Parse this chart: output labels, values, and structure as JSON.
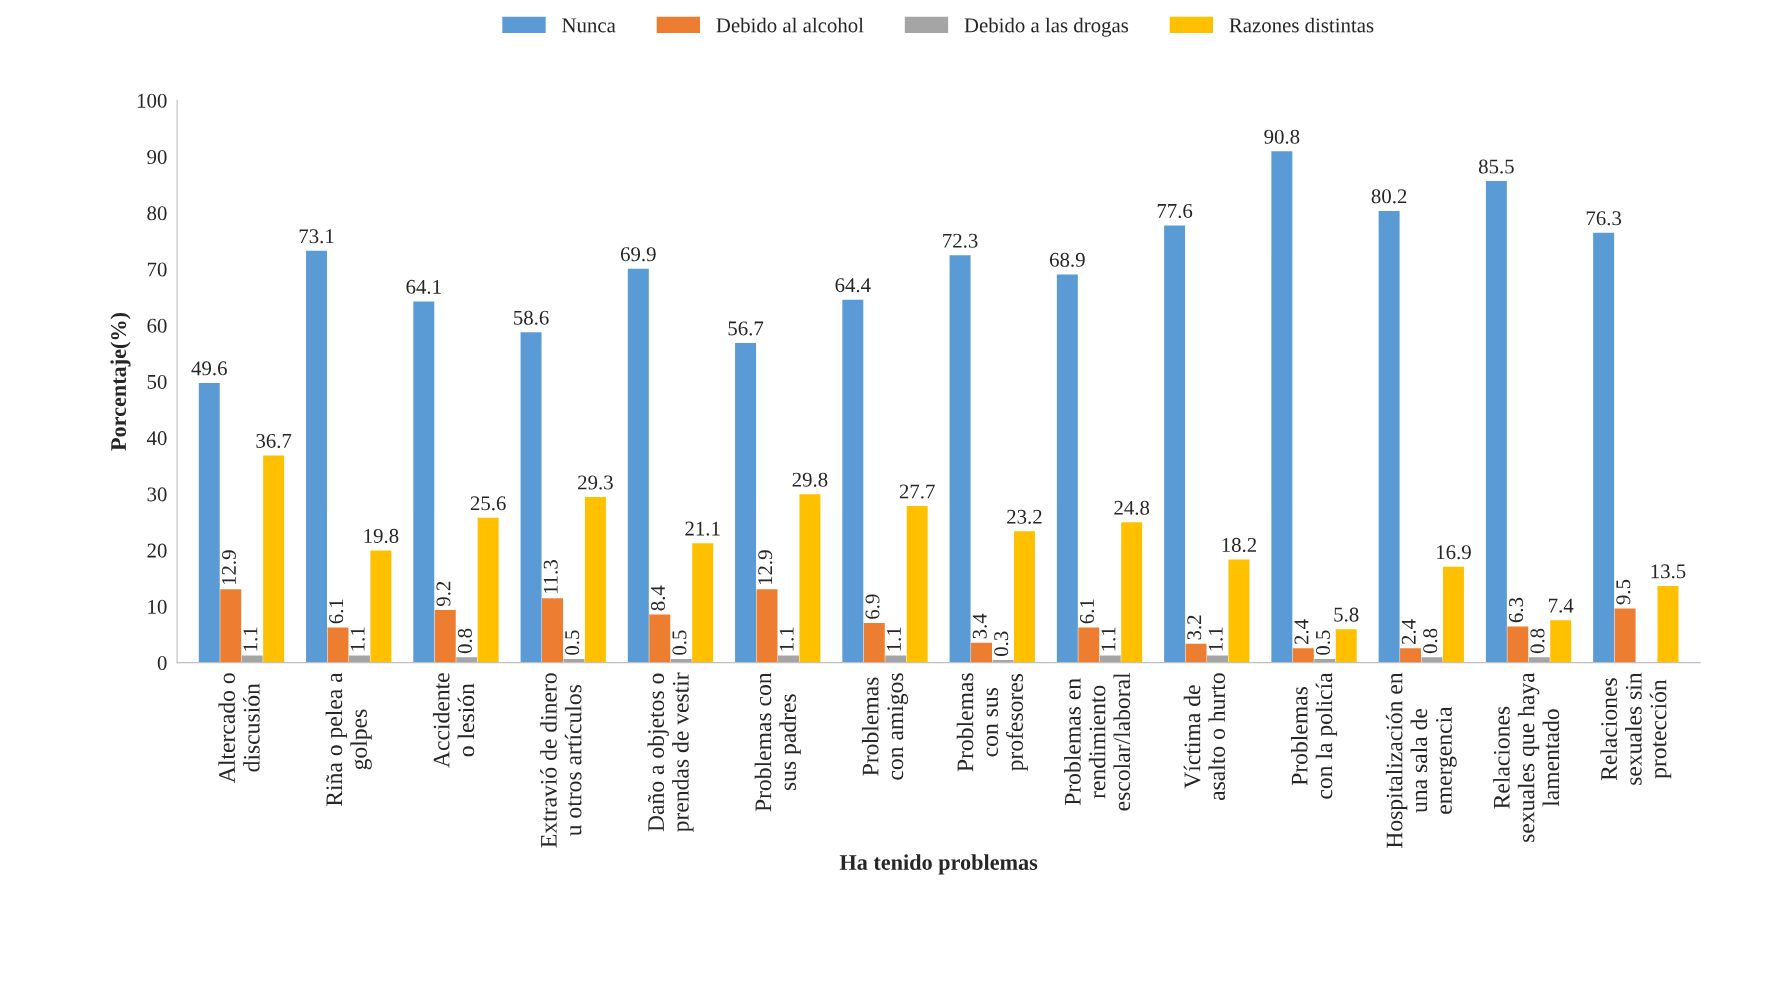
{
  "chart_data": {
    "type": "bar",
    "xlabel": "Ha tenido problemas",
    "ylabel": "Porcentaje(%)",
    "categories": [
      "Altercado o\ndiscusión",
      "Riña o pelea a\ngolpes",
      "Accidente\no lesión",
      "Extravió de dinero\nu otros artículos",
      "Daño a objetos o\nprendas de vestir",
      "Problemas con\nsus padres",
      "Problemas\ncon amigos",
      "Problemas\ncon sus\nprofesores",
      "Problemas en\nrendimiento\nescolar/laboral",
      "Víctima de\nasalto o hurto",
      "Problemas\ncon la policía",
      "Hospitalización en\nuna sala de\nemergencia",
      "Relaciones\nsexuales que haya\nlamentado",
      "Relaciones\nsexuales sin\nprotección"
    ],
    "series": [
      {
        "name": "Nunca",
        "color": "#5b9bd5",
        "values": [
          49.6,
          73.1,
          64.1,
          58.6,
          69.9,
          56.7,
          64.4,
          72.3,
          68.9,
          77.6,
          90.8,
          80.2,
          85.5,
          76.3
        ]
      },
      {
        "name": "Debido al alcohol",
        "color": "#ed7d31",
        "values": [
          12.9,
          6.1,
          9.2,
          11.3,
          8.4,
          12.9,
          6.9,
          3.4,
          6.1,
          3.2,
          2.4,
          2.4,
          6.3,
          9.5
        ]
      },
      {
        "name": "Debido a las drogas",
        "color": "#a5a5a5",
        "values": [
          1.1,
          1.1,
          0.8,
          0.5,
          0.5,
          1.1,
          1.1,
          0.3,
          1.1,
          1.1,
          0.5,
          0.8,
          0.8,
          null
        ]
      },
      {
        "name": "Razones distintas",
        "color": "#ffc000",
        "values": [
          36.7,
          19.8,
          25.6,
          29.3,
          21.1,
          29.8,
          27.7,
          23.2,
          24.8,
          18.2,
          5.8,
          16.9,
          7.4,
          13.5
        ]
      }
    ],
    "ylim": [
      0,
      100
    ],
    "yticks": [
      0,
      10,
      20,
      30,
      40,
      50,
      60,
      70,
      80,
      90,
      100
    ],
    "data_labels": true,
    "legend": "top",
    "grid": false
  }
}
